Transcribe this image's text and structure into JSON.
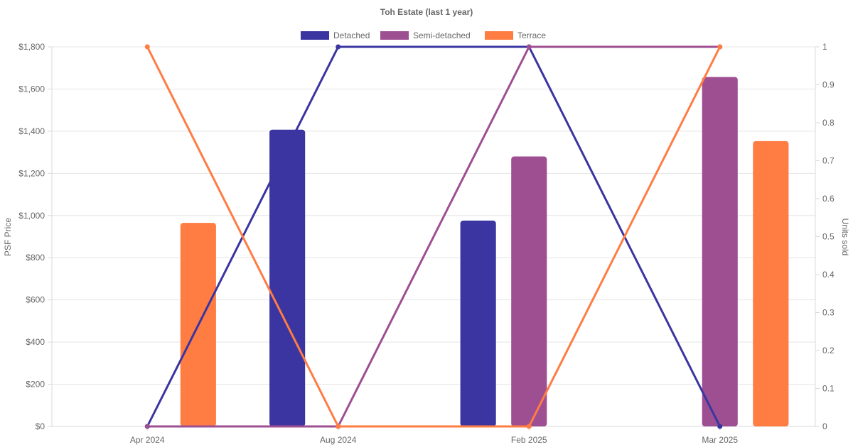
{
  "chart_data": {
    "type": "bar",
    "title": "Toh Estate (last 1 year)",
    "categories": [
      "Apr 2024",
      "Aug 2024",
      "Feb 2025",
      "Mar 2025"
    ],
    "series": [
      {
        "name": "Detached",
        "color": "#3a35a0",
        "psf": [
          null,
          1407,
          976,
          null
        ],
        "units_sold": [
          0,
          1,
          1,
          0
        ]
      },
      {
        "name": "Semi-detached",
        "color": "#9d4f92",
        "psf": [
          null,
          null,
          1280,
          1657
        ],
        "units_sold": [
          0,
          0,
          1,
          1
        ]
      },
      {
        "name": "Terrace",
        "color": "#ff7c43",
        "psf": [
          965,
          null,
          null,
          1353
        ],
        "units_sold": [
          1,
          0,
          0,
          1
        ]
      }
    ],
    "y_left": {
      "label": "PSF Price",
      "range": [
        0,
        1800
      ],
      "ticks": [
        "$0",
        "$200",
        "$400",
        "$600",
        "$800",
        "$1,000",
        "$1,200",
        "$1,400",
        "$1,600",
        "$1,800"
      ]
    },
    "y_right": {
      "label": "Units sold",
      "range": [
        0,
        1
      ],
      "ticks": [
        "0",
        "0.1",
        "0.2",
        "0.3",
        "0.4",
        "0.5",
        "0.6",
        "0.7",
        "0.8",
        "0.9",
        "1"
      ]
    },
    "legend": "top-center",
    "grid": true
  }
}
